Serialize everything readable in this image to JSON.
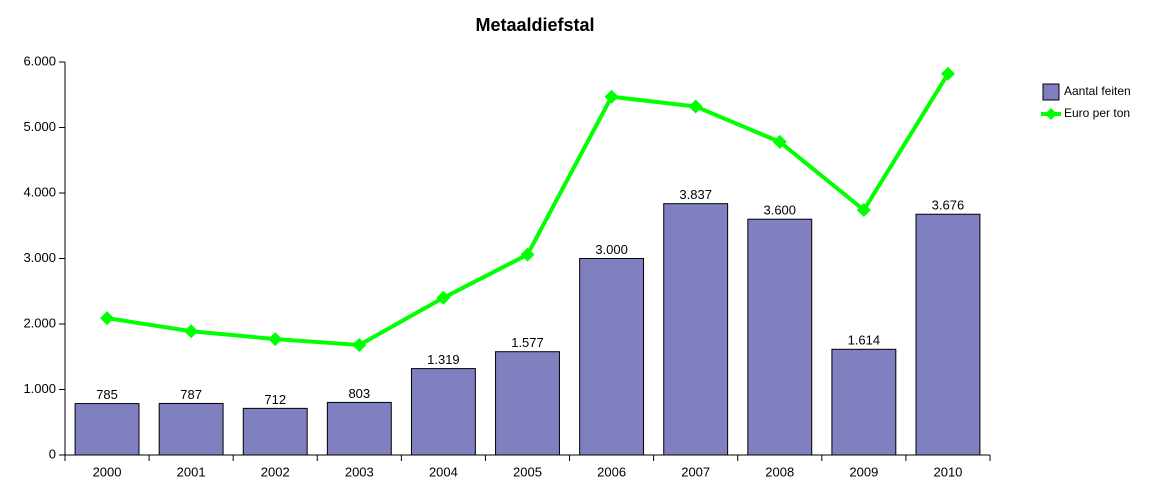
{
  "chart_data": {
    "type": "bar",
    "title": "Metaaldiefstal",
    "categories": [
      "2000",
      "2001",
      "2002",
      "2003",
      "2004",
      "2005",
      "2006",
      "2007",
      "2008",
      "2009",
      "2010"
    ],
    "series": [
      {
        "name": "Aantal feiten",
        "color": "#8080c0",
        "type": "bar",
        "values": [
          785,
          787,
          712,
          803,
          1319,
          1577,
          3000,
          3837,
          3600,
          1614,
          3676
        ],
        "value_labels": [
          "785",
          "787",
          "712",
          "803",
          "1.319",
          "1.577",
          "3.000",
          "3.837",
          "3.600",
          "1.614",
          "3.676"
        ]
      },
      {
        "name": "Euro per ton",
        "color": "#00ff00",
        "type": "line",
        "values": [
          2090,
          1890,
          1770,
          1680,
          2400,
          3060,
          5470,
          5320,
          4780,
          3740,
          5820
        ]
      }
    ],
    "ylim": [
      0,
      6000
    ],
    "yticks": [
      0,
      {
        "value": 1000,
        "label": "1.000"
      },
      {
        "value": 2000,
        "label": "2.000"
      },
      {
        "value": 3000,
        "label": "3.000"
      },
      {
        "value": 4000,
        "label": "4.000"
      },
      {
        "value": 5000,
        "label": "5.000"
      },
      {
        "value": 6000,
        "label": "6.000"
      }
    ],
    "legend": "right"
  }
}
